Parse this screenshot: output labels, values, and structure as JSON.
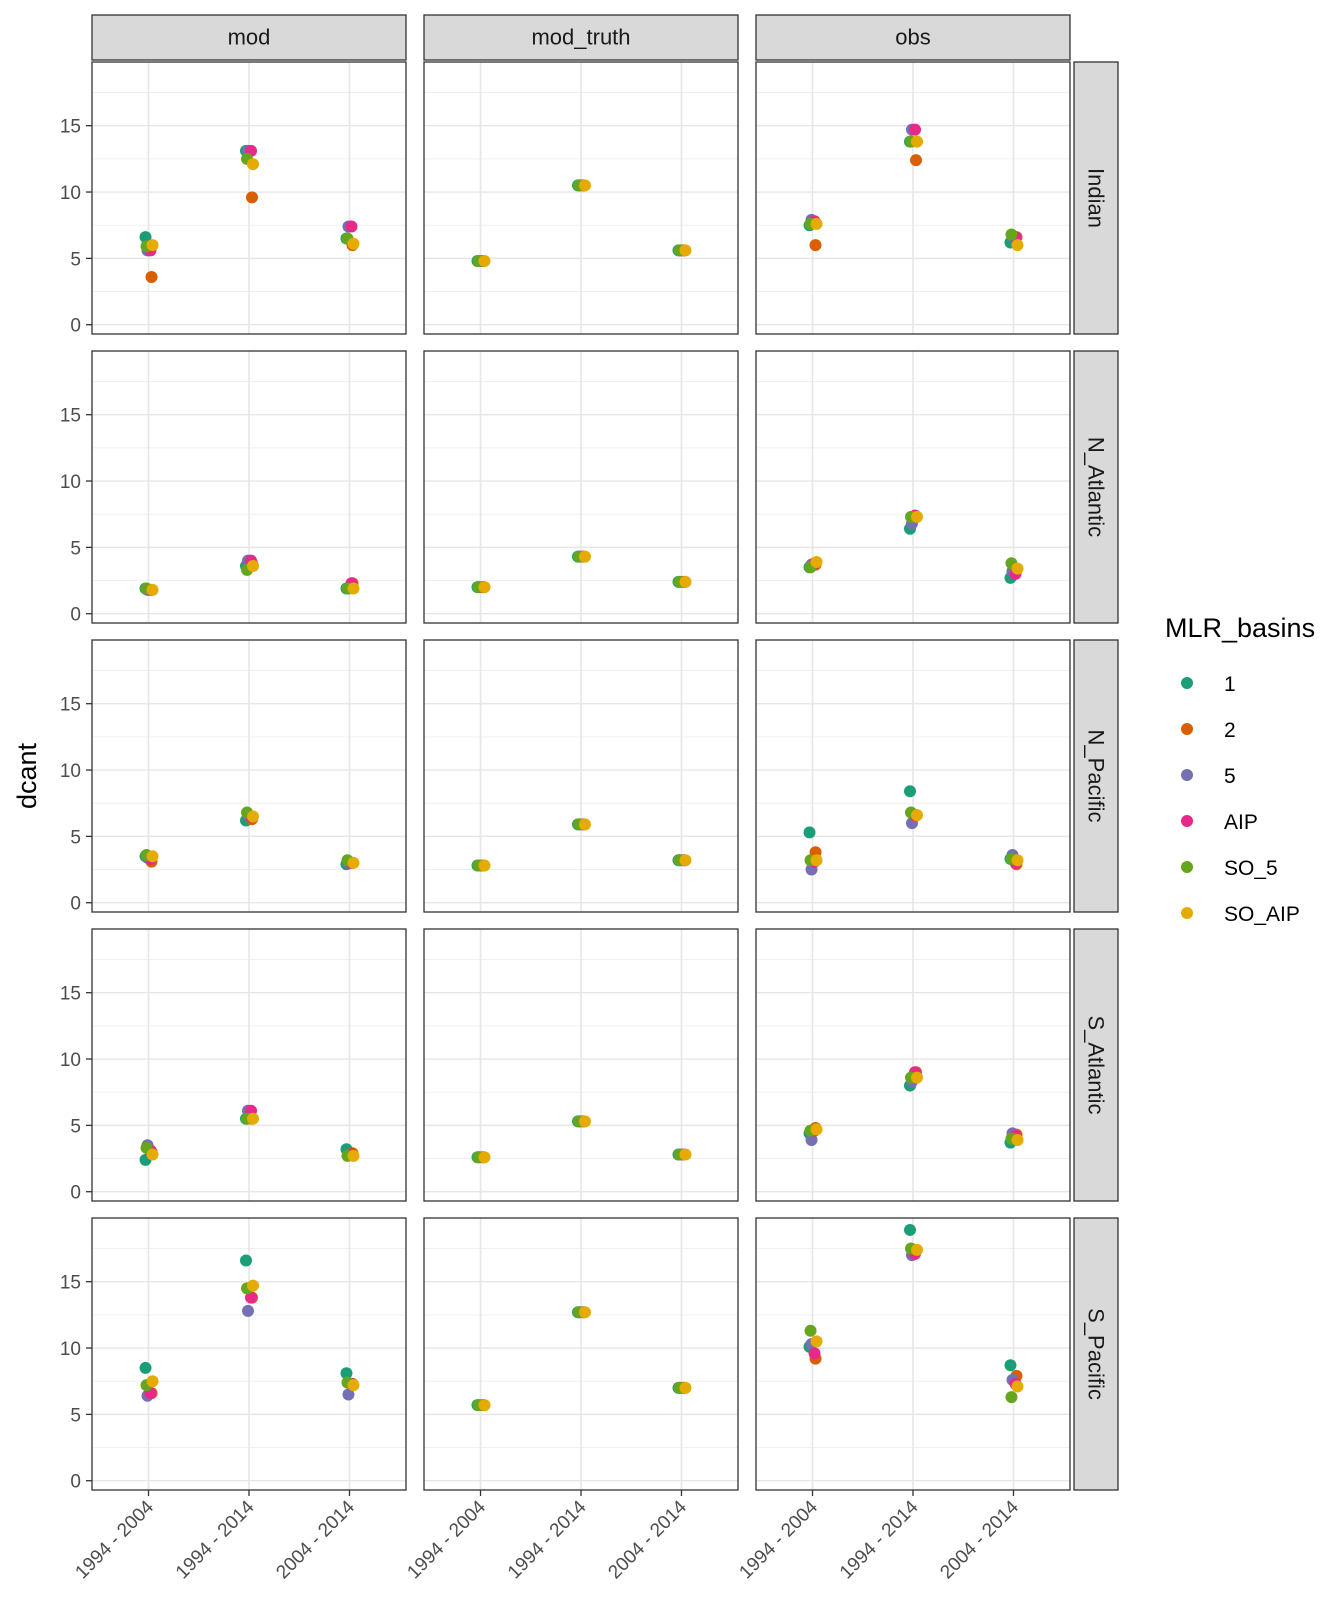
{
  "chart_data": {
    "type": "scatter",
    "title": "",
    "ylabel": "dcant",
    "xlabel": "",
    "ylim": [
      -0.7,
      19.8
    ],
    "yticks": [
      0,
      5,
      10,
      15
    ],
    "grid": true,
    "legend_position": "right",
    "legend_title": "MLR_basins",
    "columns": [
      "mod",
      "mod_truth",
      "obs"
    ],
    "rows": [
      "Indian",
      "N_Atlantic",
      "N_Pacific",
      "S_Atlantic",
      "S_Pacific"
    ],
    "categories": [
      "1994 - 2004",
      "1994 - 2014",
      "2004 - 2014"
    ],
    "series": [
      {
        "name": "1",
        "color": "#1B9E77"
      },
      {
        "name": "2",
        "color": "#D95F02"
      },
      {
        "name": "5",
        "color": "#7570B3"
      },
      {
        "name": "AIP",
        "color": "#E7298A"
      },
      {
        "name": "SO_5",
        "color": "#66A61E"
      },
      {
        "name": "SO_AIP",
        "color": "#E6AB02"
      }
    ],
    "panels": [
      {
        "row": "Indian",
        "col": "mod",
        "values": {
          "1": [
            6.6,
            13.1,
            6.5
          ],
          "2": [
            3.6,
            9.6,
            6.0
          ],
          "5": [
            5.6,
            13.1,
            7.4
          ],
          "AIP": [
            5.6,
            13.1,
            7.4
          ],
          "SO_5": [
            5.9,
            12.5,
            6.5
          ],
          "SO_AIP": [
            6.0,
            12.1,
            6.1
          ]
        }
      },
      {
        "row": "Indian",
        "col": "mod_truth",
        "values": {
          "1": [
            4.8,
            10.5,
            5.6
          ],
          "2": [
            4.8,
            10.5,
            5.6
          ],
          "5": [
            4.8,
            10.5,
            5.6
          ],
          "AIP": [
            4.8,
            10.5,
            5.6
          ],
          "SO_5": [
            4.8,
            10.5,
            5.6
          ],
          "SO_AIP": [
            4.8,
            10.5,
            5.6
          ]
        }
      },
      {
        "row": "Indian",
        "col": "obs",
        "values": {
          "1": [
            7.5,
            13.8,
            6.2
          ],
          "2": [
            6.0,
            12.4,
            6.6
          ],
          "5": [
            7.9,
            14.7,
            6.7
          ],
          "AIP": [
            7.8,
            14.7,
            6.6
          ],
          "SO_5": [
            7.6,
            13.8,
            6.8
          ],
          "SO_AIP": [
            7.6,
            13.8,
            6.0
          ]
        }
      },
      {
        "row": "N_Atlantic",
        "col": "mod",
        "values": {
          "1": [
            1.9,
            3.6,
            1.9
          ],
          "2": [
            1.8,
            3.8,
            2.3
          ],
          "5": [
            1.8,
            4.0,
            1.9
          ],
          "AIP": [
            1.8,
            4.0,
            2.3
          ],
          "SO_5": [
            1.9,
            3.3,
            1.9
          ],
          "SO_AIP": [
            1.8,
            3.6,
            1.9
          ]
        }
      },
      {
        "row": "N_Atlantic",
        "col": "mod_truth",
        "values": {
          "1": [
            2.0,
            4.3,
            2.4
          ],
          "2": [
            2.0,
            4.3,
            2.4
          ],
          "5": [
            2.0,
            4.3,
            2.4
          ],
          "AIP": [
            2.0,
            4.3,
            2.4
          ],
          "SO_5": [
            2.0,
            4.3,
            2.4
          ],
          "SO_AIP": [
            2.0,
            4.3,
            2.4
          ]
        }
      },
      {
        "row": "N_Atlantic",
        "col": "obs",
        "values": {
          "1": [
            3.5,
            6.4,
            2.7
          ],
          "2": [
            3.7,
            7.3,
            3.3
          ],
          "5": [
            3.7,
            6.8,
            3.2
          ],
          "AIP": [
            3.8,
            7.4,
            3.0
          ],
          "SO_5": [
            3.5,
            7.3,
            3.8
          ],
          "SO_AIP": [
            3.9,
            7.3,
            3.4
          ]
        }
      },
      {
        "row": "N_Pacific",
        "col": "mod",
        "values": {
          "1": [
            3.5,
            6.2,
            2.9
          ],
          "2": [
            3.1,
            6.3,
            3.0
          ],
          "5": [
            3.4,
            6.6,
            3.0
          ],
          "AIP": [
            3.3,
            6.5,
            3.0
          ],
          "SO_5": [
            3.6,
            6.8,
            3.2
          ],
          "SO_AIP": [
            3.5,
            6.5,
            3.0
          ]
        }
      },
      {
        "row": "N_Pacific",
        "col": "mod_truth",
        "values": {
          "1": [
            2.8,
            5.9,
            3.2
          ],
          "2": [
            2.8,
            5.9,
            3.2
          ],
          "5": [
            2.8,
            5.9,
            3.2
          ],
          "AIP": [
            2.8,
            5.9,
            3.2
          ],
          "SO_5": [
            2.8,
            5.9,
            3.2
          ],
          "SO_AIP": [
            2.8,
            5.9,
            3.2
          ]
        }
      },
      {
        "row": "N_Pacific",
        "col": "obs",
        "values": {
          "1": [
            5.3,
            8.4,
            3.3
          ],
          "2": [
            3.8,
            6.6,
            2.9
          ],
          "5": [
            2.5,
            6.0,
            3.6
          ],
          "AIP": [
            3.1,
            6.6,
            3.0
          ],
          "SO_5": [
            3.2,
            6.8,
            3.3
          ],
          "SO_AIP": [
            3.2,
            6.6,
            3.2
          ]
        }
      },
      {
        "row": "S_Atlantic",
        "col": "mod",
        "values": {
          "1": [
            2.4,
            5.5,
            3.2
          ],
          "2": [
            3.0,
            5.5,
            2.9
          ],
          "5": [
            3.5,
            6.1,
            2.8
          ],
          "AIP": [
            3.1,
            6.1,
            2.8
          ],
          "SO_5": [
            3.3,
            5.5,
            2.7
          ],
          "SO_AIP": [
            2.8,
            5.5,
            2.7
          ]
        }
      },
      {
        "row": "S_Atlantic",
        "col": "mod_truth",
        "values": {
          "1": [
            2.6,
            5.3,
            2.8
          ],
          "2": [
            2.6,
            5.3,
            2.8
          ],
          "5": [
            2.6,
            5.3,
            2.8
          ],
          "AIP": [
            2.6,
            5.3,
            2.8
          ],
          "SO_5": [
            2.6,
            5.3,
            2.8
          ],
          "SO_AIP": [
            2.6,
            5.3,
            2.8
          ]
        }
      },
      {
        "row": "S_Atlantic",
        "col": "obs",
        "values": {
          "1": [
            4.4,
            8.0,
            3.7
          ],
          "2": [
            4.8,
            9.0,
            4.3
          ],
          "5": [
            3.9,
            8.3,
            4.4
          ],
          "AIP": [
            4.6,
            9.0,
            4.2
          ],
          "SO_5": [
            4.6,
            8.6,
            4.0
          ],
          "SO_AIP": [
            4.7,
            8.6,
            3.9
          ]
        }
      },
      {
        "row": "S_Pacific",
        "col": "mod",
        "values": {
          "1": [
            8.5,
            16.6,
            8.1
          ],
          "2": [
            6.6,
            13.8,
            7.3
          ],
          "5": [
            6.4,
            12.8,
            6.5
          ],
          "AIP": [
            6.6,
            13.8,
            7.3
          ],
          "SO_5": [
            7.2,
            14.5,
            7.4
          ],
          "SO_AIP": [
            7.5,
            14.7,
            7.2
          ]
        }
      },
      {
        "row": "S_Pacific",
        "col": "mod_truth",
        "values": {
          "1": [
            5.7,
            12.7,
            7.0
          ],
          "2": [
            5.7,
            12.7,
            7.0
          ],
          "5": [
            5.7,
            12.7,
            7.0
          ],
          "AIP": [
            5.7,
            12.7,
            7.0
          ],
          "SO_5": [
            5.7,
            12.7,
            7.0
          ],
          "SO_AIP": [
            5.7,
            12.7,
            7.0
          ]
        }
      },
      {
        "row": "S_Pacific",
        "col": "obs",
        "values": {
          "1": [
            10.1,
            18.9,
            8.7
          ],
          "2": [
            9.2,
            17.3,
            7.9
          ],
          "5": [
            10.3,
            17.0,
            7.6
          ],
          "AIP": [
            9.6,
            17.1,
            7.3
          ],
          "SO_5": [
            11.3,
            17.5,
            6.3
          ],
          "SO_AIP": [
            10.5,
            17.4,
            7.1
          ]
        }
      }
    ]
  }
}
